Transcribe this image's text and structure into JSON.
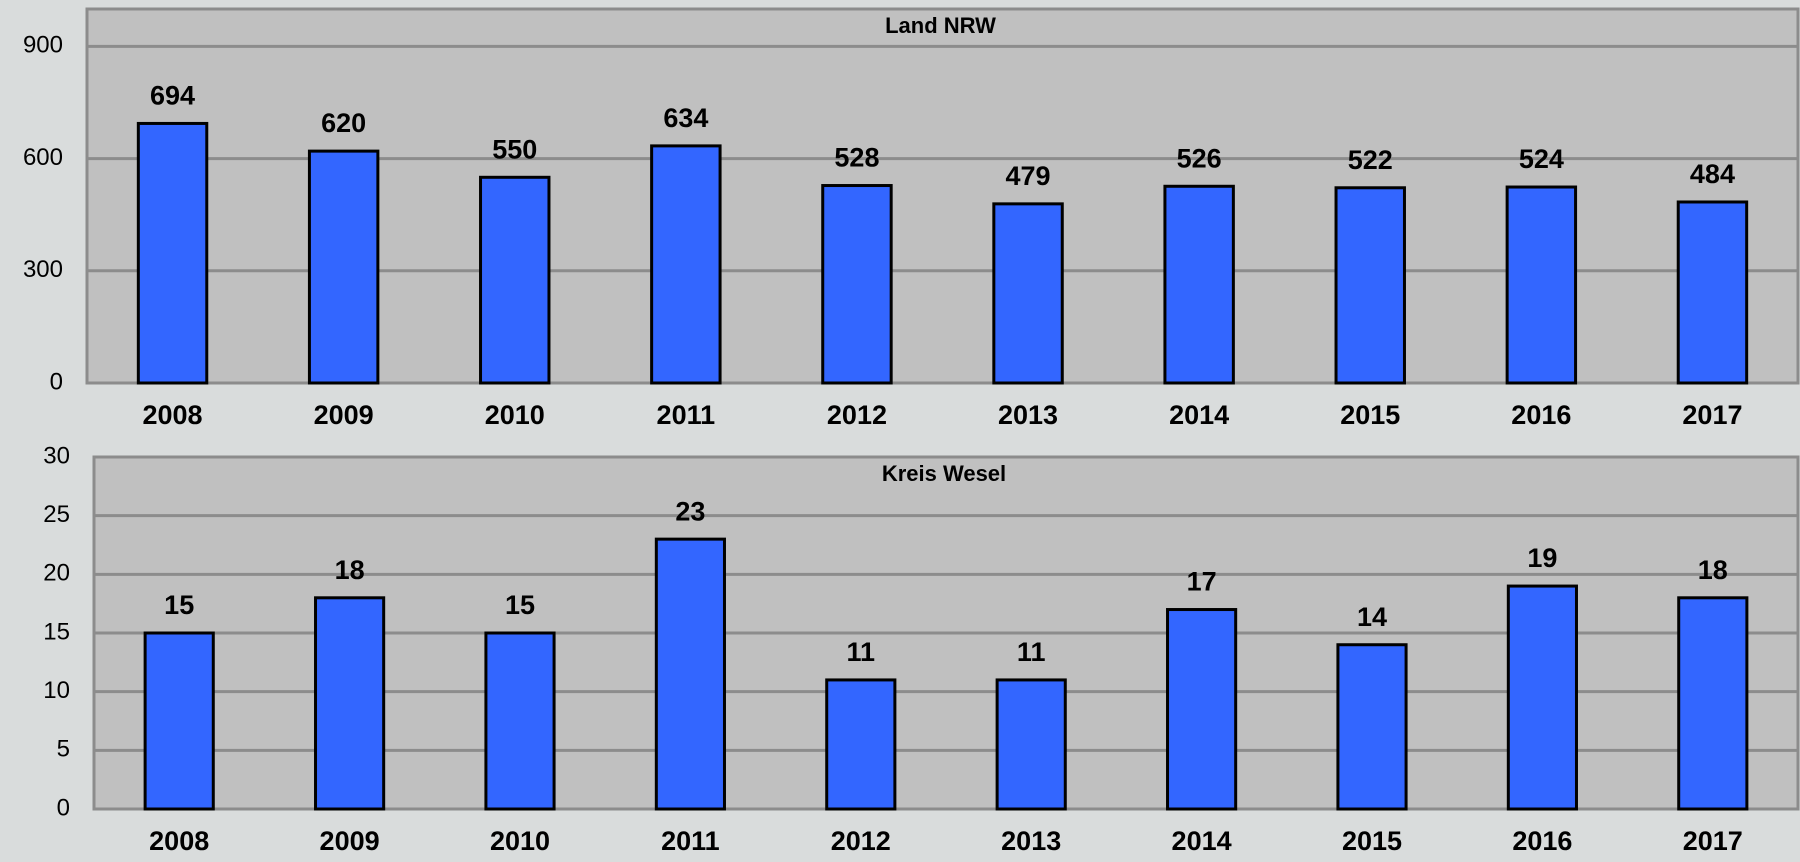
{
  "chart_data": [
    {
      "type": "bar",
      "title": "Land NRW",
      "categories": [
        "2008",
        "2009",
        "2010",
        "2011",
        "2012",
        "2013",
        "2014",
        "2015",
        "2016",
        "2017"
      ],
      "values": [
        694,
        620,
        550,
        634,
        528,
        479,
        526,
        522,
        524,
        484
      ],
      "color": "#3366ff",
      "ylim": [
        0,
        1000
      ],
      "yticks": [
        0,
        300,
        600,
        900
      ],
      "grid": true
    },
    {
      "type": "bar",
      "title": "Kreis Wesel",
      "categories": [
        "2008",
        "2009",
        "2010",
        "2011",
        "2012",
        "2013",
        "2014",
        "2015",
        "2016",
        "2017"
      ],
      "values": [
        15,
        18,
        15,
        23,
        11,
        11,
        17,
        14,
        19,
        18
      ],
      "color": "#3366ff",
      "ylim": [
        0,
        30
      ],
      "yticks": [
        0,
        5,
        10,
        15,
        20,
        25,
        30
      ],
      "grid": true
    }
  ]
}
